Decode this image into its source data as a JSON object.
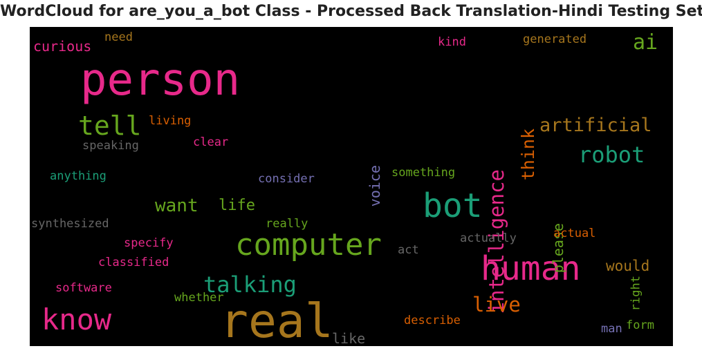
{
  "title": "WordCloud for are_you_a_bot Class - Processed Back Translation-Hindi Testing Set",
  "words": [
    {
      "text": "person",
      "color": "#e7298a"
    },
    {
      "text": "real",
      "color": "#a6761d"
    },
    {
      "text": "computer",
      "color": "#66a61e"
    },
    {
      "text": "bot",
      "color": "#1b9e77"
    },
    {
      "text": "human",
      "color": "#e7298a"
    },
    {
      "text": "know",
      "color": "#e7298a"
    },
    {
      "text": "tell",
      "color": "#66a61e"
    },
    {
      "text": "talking",
      "color": "#1b9e77"
    },
    {
      "text": "robot",
      "color": "#1b9e77"
    },
    {
      "text": "artificial",
      "color": "#a6761d"
    },
    {
      "text": "intelligence",
      "color": "#e7298a"
    },
    {
      "text": "live",
      "color": "#d95f02"
    },
    {
      "text": "want",
      "color": "#66a61e"
    },
    {
      "text": "think",
      "color": "#d95f02"
    },
    {
      "text": "ai",
      "color": "#66a61e"
    },
    {
      "text": "life",
      "color": "#66a61e"
    },
    {
      "text": "would",
      "color": "#a6761d"
    },
    {
      "text": "please",
      "color": "#66a61e"
    },
    {
      "text": "voice",
      "color": "#7570b3"
    },
    {
      "text": "like",
      "color": "#666666"
    },
    {
      "text": "curious",
      "color": "#e7298a"
    },
    {
      "text": "need",
      "color": "#a6761d"
    },
    {
      "text": "living",
      "color": "#d95f02"
    },
    {
      "text": "speaking",
      "color": "#666666"
    },
    {
      "text": "clear",
      "color": "#e7298a"
    },
    {
      "text": "anything",
      "color": "#1b9e77"
    },
    {
      "text": "consider",
      "color": "#7570b3"
    },
    {
      "text": "something",
      "color": "#66a61e"
    },
    {
      "text": "synthesized",
      "color": "#666666"
    },
    {
      "text": "really",
      "color": "#66a61e"
    },
    {
      "text": "specify",
      "color": "#e7298a"
    },
    {
      "text": "classified",
      "color": "#e7298a"
    },
    {
      "text": "software",
      "color": "#e7298a"
    },
    {
      "text": "whether",
      "color": "#66a61e"
    },
    {
      "text": "act",
      "color": "#666666"
    },
    {
      "text": "actually",
      "color": "#666666"
    },
    {
      "text": "actual",
      "color": "#d95f02"
    },
    {
      "text": "describe",
      "color": "#d95f02"
    },
    {
      "text": "right",
      "color": "#66a61e"
    },
    {
      "text": "form",
      "color": "#66a61e"
    },
    {
      "text": "man",
      "color": "#7570b3"
    },
    {
      "text": "kind",
      "color": "#e7298a"
    },
    {
      "text": "generated",
      "color": "#a6761d"
    }
  ]
}
